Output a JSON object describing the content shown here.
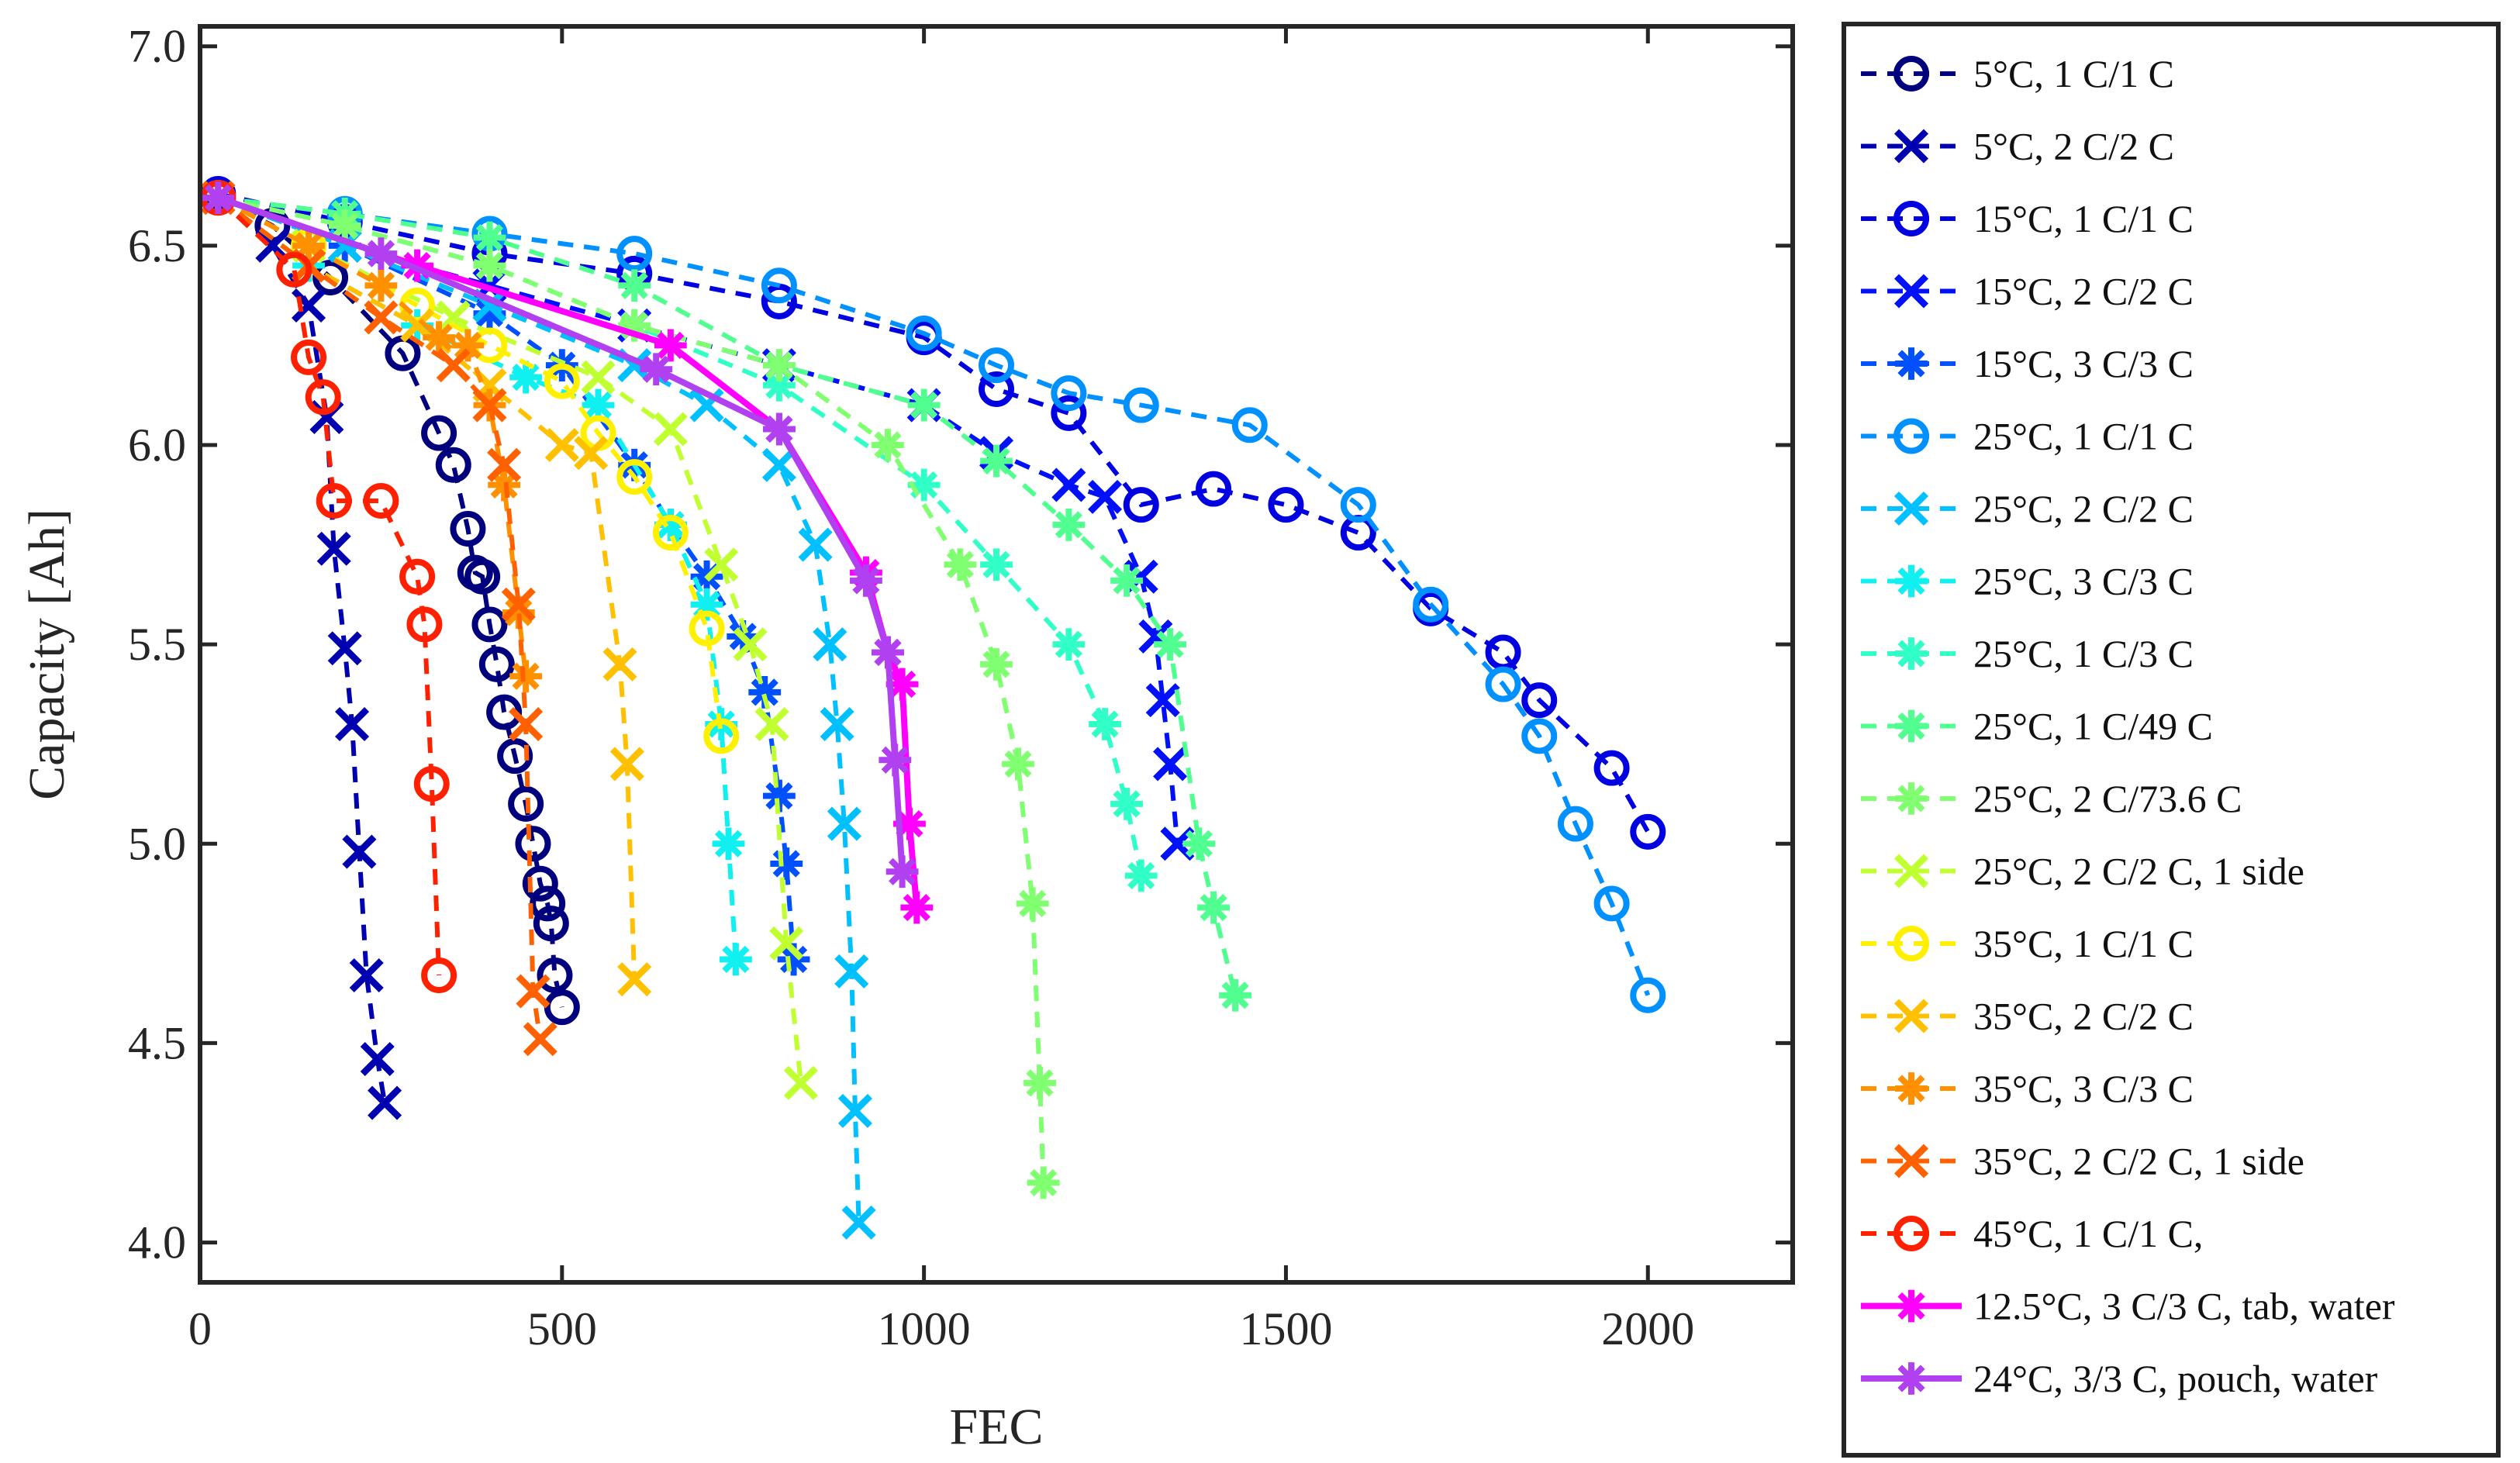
{
  "chart_data": {
    "type": "line",
    "xlabel": "FEC",
    "ylabel": "Capacity [Ah]",
    "xlim": [
      0,
      2200
    ],
    "ylim": [
      3.9,
      7.05
    ],
    "x_ticks": [
      0,
      500,
      1000,
      1500,
      2000
    ],
    "y_ticks": [
      4.0,
      4.5,
      5.0,
      5.5,
      6.0,
      6.5,
      7.0
    ],
    "x_tick_labels": [
      "0",
      "500",
      "1000",
      "1500",
      "2000"
    ],
    "y_tick_labels": [
      "4.0",
      "4.5",
      "5.0",
      "5.5",
      "6.0",
      "6.5",
      "7.0"
    ],
    "grid": false,
    "legend_position": "outside-right",
    "series": [
      {
        "name": "5°C, 1 C/1 C",
        "color": "#00007F",
        "marker": "circle",
        "line": "dashed",
        "points": [
          [
            25,
            6.62
          ],
          [
            100,
            6.55
          ],
          [
            180,
            6.42
          ],
          [
            280,
            6.23
          ],
          [
            330,
            6.03
          ],
          [
            350,
            5.95
          ],
          [
            370,
            5.79
          ],
          [
            380,
            5.68
          ],
          [
            390,
            5.67
          ],
          [
            400,
            5.55
          ],
          [
            410,
            5.45
          ],
          [
            420,
            5.33
          ],
          [
            435,
            5.22
          ],
          [
            450,
            5.1
          ],
          [
            460,
            5.0
          ],
          [
            470,
            4.9
          ],
          [
            480,
            4.85
          ],
          [
            485,
            4.8
          ],
          [
            490,
            4.67
          ],
          [
            500,
            4.59
          ]
        ]
      },
      {
        "name": "5°C, 2 C/2 C",
        "color": "#0000B0",
        "marker": "x",
        "line": "dashed",
        "points": [
          [
            25,
            6.62
          ],
          [
            100,
            6.5
          ],
          [
            150,
            6.35
          ],
          [
            175,
            6.07
          ],
          [
            185,
            5.74
          ],
          [
            200,
            5.49
          ],
          [
            210,
            5.3
          ],
          [
            220,
            4.98
          ],
          [
            230,
            4.67
          ],
          [
            245,
            4.46
          ],
          [
            255,
            4.35
          ]
        ]
      },
      {
        "name": "15°C, 1 C/1 C",
        "color": "#0000E0",
        "marker": "circle",
        "line": "dashed",
        "points": [
          [
            25,
            6.63
          ],
          [
            200,
            6.56
          ],
          [
            400,
            6.48
          ],
          [
            600,
            6.43
          ],
          [
            800,
            6.36
          ],
          [
            1000,
            6.27
          ],
          [
            1100,
            6.14
          ],
          [
            1200,
            6.08
          ],
          [
            1300,
            5.85
          ],
          [
            1400,
            5.89
          ],
          [
            1500,
            5.85
          ],
          [
            1600,
            5.78
          ],
          [
            1700,
            5.59
          ],
          [
            1800,
            5.48
          ],
          [
            1850,
            5.36
          ],
          [
            1950,
            5.19
          ],
          [
            2000,
            5.03
          ]
        ]
      },
      {
        "name": "15°C, 2 C/2 C",
        "color": "#0010F8",
        "marker": "x",
        "line": "dashed",
        "points": [
          [
            25,
            6.62
          ],
          [
            200,
            6.5
          ],
          [
            400,
            6.4
          ],
          [
            600,
            6.3
          ],
          [
            800,
            6.2
          ],
          [
            1000,
            6.1
          ],
          [
            1100,
            5.98
          ],
          [
            1200,
            5.9
          ],
          [
            1250,
            5.87
          ],
          [
            1300,
            5.67
          ],
          [
            1320,
            5.52
          ],
          [
            1330,
            5.36
          ],
          [
            1340,
            5.2
          ],
          [
            1350,
            5.0
          ]
        ]
      },
      {
        "name": "15°C, 3 C/3 C",
        "color": "#0050FF",
        "marker": "asterisk",
        "line": "dashed",
        "points": [
          [
            25,
            6.62
          ],
          [
            200,
            6.5
          ],
          [
            400,
            6.33
          ],
          [
            500,
            6.2
          ],
          [
            600,
            5.95
          ],
          [
            650,
            5.8
          ],
          [
            700,
            5.67
          ],
          [
            750,
            5.52
          ],
          [
            780,
            5.38
          ],
          [
            800,
            5.12
          ],
          [
            810,
            4.95
          ],
          [
            820,
            4.71
          ]
        ]
      },
      {
        "name": "25°C, 1 C/1 C",
        "color": "#0090FF",
        "marker": "circle",
        "line": "dashed",
        "points": [
          [
            25,
            6.62
          ],
          [
            200,
            6.58
          ],
          [
            400,
            6.53
          ],
          [
            600,
            6.48
          ],
          [
            800,
            6.4
          ],
          [
            1000,
            6.28
          ],
          [
            1100,
            6.2
          ],
          [
            1200,
            6.13
          ],
          [
            1300,
            6.1
          ],
          [
            1450,
            6.05
          ],
          [
            1600,
            5.85
          ],
          [
            1700,
            5.6
          ],
          [
            1800,
            5.4
          ],
          [
            1850,
            5.27
          ],
          [
            1900,
            5.05
          ],
          [
            1950,
            4.85
          ],
          [
            2000,
            4.62
          ]
        ]
      },
      {
        "name": "25°C, 2 C/2 C",
        "color": "#00C0FF",
        "marker": "x",
        "line": "dashed",
        "points": [
          [
            25,
            6.62
          ],
          [
            200,
            6.5
          ],
          [
            400,
            6.35
          ],
          [
            600,
            6.2
          ],
          [
            700,
            6.1
          ],
          [
            800,
            5.95
          ],
          [
            850,
            5.75
          ],
          [
            870,
            5.5
          ],
          [
            880,
            5.3
          ],
          [
            890,
            5.05
          ],
          [
            900,
            4.68
          ],
          [
            905,
            4.33
          ],
          [
            910,
            4.05
          ]
        ]
      },
      {
        "name": "25°C, 3 C/3 C",
        "color": "#10F0F0",
        "marker": "asterisk",
        "line": "dashed",
        "points": [
          [
            25,
            6.62
          ],
          [
            150,
            6.45
          ],
          [
            300,
            6.3
          ],
          [
            450,
            6.17
          ],
          [
            550,
            6.1
          ],
          [
            650,
            5.8
          ],
          [
            700,
            5.6
          ],
          [
            720,
            5.3
          ],
          [
            730,
            5.0
          ],
          [
            740,
            4.71
          ]
        ]
      },
      {
        "name": "25°C, 1 C/3 C",
        "color": "#30FFC8",
        "marker": "asterisk",
        "line": "dashed",
        "points": [
          [
            25,
            6.62
          ],
          [
            200,
            6.55
          ],
          [
            400,
            6.45
          ],
          [
            600,
            6.3
          ],
          [
            800,
            6.15
          ],
          [
            1000,
            5.9
          ],
          [
            1100,
            5.7
          ],
          [
            1200,
            5.5
          ],
          [
            1250,
            5.3
          ],
          [
            1280,
            5.1
          ],
          [
            1300,
            4.92
          ]
        ]
      },
      {
        "name": "25°C, 1 C/49 C",
        "color": "#50FF90",
        "marker": "asterisk",
        "line": "dashed",
        "points": [
          [
            25,
            6.62
          ],
          [
            200,
            6.58
          ],
          [
            400,
            6.52
          ],
          [
            600,
            6.4
          ],
          [
            800,
            6.2
          ],
          [
            1000,
            6.1
          ],
          [
            1100,
            5.96
          ],
          [
            1200,
            5.8
          ],
          [
            1280,
            5.66
          ],
          [
            1340,
            5.5
          ],
          [
            1380,
            5.0
          ],
          [
            1400,
            4.84
          ],
          [
            1430,
            4.62
          ]
        ]
      },
      {
        "name": "25°C, 2 C/73.6 C",
        "color": "#80FF70",
        "marker": "asterisk",
        "line": "dashed",
        "points": [
          [
            25,
            6.62
          ],
          [
            200,
            6.55
          ],
          [
            400,
            6.45
          ],
          [
            600,
            6.3
          ],
          [
            800,
            6.2
          ],
          [
            950,
            6.0
          ],
          [
            1050,
            5.7
          ],
          [
            1100,
            5.45
          ],
          [
            1130,
            5.2
          ],
          [
            1150,
            4.85
          ],
          [
            1160,
            4.4
          ],
          [
            1165,
            4.15
          ]
        ]
      },
      {
        "name": "25°C, 2 C/2 C, 1 side",
        "color": "#C0FF30",
        "marker": "x",
        "line": "dashed",
        "points": [
          [
            25,
            6.62
          ],
          [
            150,
            6.5
          ],
          [
            350,
            6.32
          ],
          [
            550,
            6.17
          ],
          [
            650,
            6.04
          ],
          [
            720,
            5.7
          ],
          [
            760,
            5.5
          ],
          [
            790,
            5.3
          ],
          [
            810,
            4.75
          ],
          [
            830,
            4.4
          ]
        ]
      },
      {
        "name": "35°C, 1 C/1 C",
        "color": "#FFF000",
        "marker": "circle",
        "line": "dashed",
        "points": [
          [
            25,
            6.62
          ],
          [
            150,
            6.5
          ],
          [
            300,
            6.35
          ],
          [
            400,
            6.25
          ],
          [
            500,
            6.16
          ],
          [
            550,
            6.03
          ],
          [
            600,
            5.92
          ],
          [
            650,
            5.78
          ],
          [
            700,
            5.54
          ],
          [
            720,
            5.27
          ]
        ]
      },
      {
        "name": "35°C, 2 C/2 C",
        "color": "#FFC000",
        "marker": "x",
        "line": "dashed",
        "points": [
          [
            25,
            6.62
          ],
          [
            150,
            6.45
          ],
          [
            300,
            6.3
          ],
          [
            400,
            6.15
          ],
          [
            500,
            6.0
          ],
          [
            540,
            5.98
          ],
          [
            580,
            5.45
          ],
          [
            590,
            5.2
          ],
          [
            600,
            4.66
          ]
        ]
      },
      {
        "name": "35°C, 3 C/3 C",
        "color": "#FF9000",
        "marker": "asterisk",
        "line": "dashed",
        "points": [
          [
            25,
            6.62
          ],
          [
            150,
            6.5
          ],
          [
            250,
            6.4
          ],
          [
            330,
            6.27
          ],
          [
            370,
            6.25
          ],
          [
            400,
            6.1
          ],
          [
            420,
            5.9
          ],
          [
            440,
            5.58
          ],
          [
            450,
            5.42
          ]
        ]
      },
      {
        "name": "35°C, 2 C/2 C, 1 side",
        "color": "#FF6000",
        "marker": "x",
        "line": "dashed",
        "points": [
          [
            25,
            6.62
          ],
          [
            150,
            6.45
          ],
          [
            250,
            6.32
          ],
          [
            350,
            6.2
          ],
          [
            400,
            6.1
          ],
          [
            420,
            5.95
          ],
          [
            440,
            5.6
          ],
          [
            450,
            5.3
          ],
          [
            460,
            4.63
          ],
          [
            470,
            4.51
          ]
        ]
      },
      {
        "name": "45°C, 1 C/1 C,",
        "color": "#FF2000",
        "marker": "circle",
        "line": "dashed",
        "points": [
          [
            25,
            6.62
          ],
          [
            130,
            6.44
          ],
          [
            150,
            6.22
          ],
          [
            170,
            6.12
          ],
          [
            185,
            5.86
          ],
          [
            250,
            5.86
          ],
          [
            300,
            5.67
          ],
          [
            310,
            5.55
          ],
          [
            320,
            5.15
          ],
          [
            330,
            4.67
          ]
        ]
      },
      {
        "name": "12.5°C, 3 C/3 C, tab, water",
        "color": "#FF00FF",
        "marker": "asterisk",
        "line": "solid",
        "points": [
          [
            25,
            6.62
          ],
          [
            300,
            6.45
          ],
          [
            650,
            6.25
          ],
          [
            800,
            6.04
          ],
          [
            920,
            5.68
          ],
          [
            950,
            5.48
          ],
          [
            970,
            5.4
          ],
          [
            980,
            5.05
          ],
          [
            990,
            4.84
          ]
        ]
      },
      {
        "name": "24°C, 3/3 C, pouch, water",
        "color": "#B040F0",
        "marker": "asterisk",
        "line": "solid",
        "points": [
          [
            25,
            6.62
          ],
          [
            250,
            6.48
          ],
          [
            630,
            6.19
          ],
          [
            800,
            6.04
          ],
          [
            920,
            5.66
          ],
          [
            950,
            5.48
          ],
          [
            960,
            5.21
          ],
          [
            970,
            4.93
          ]
        ]
      }
    ]
  }
}
